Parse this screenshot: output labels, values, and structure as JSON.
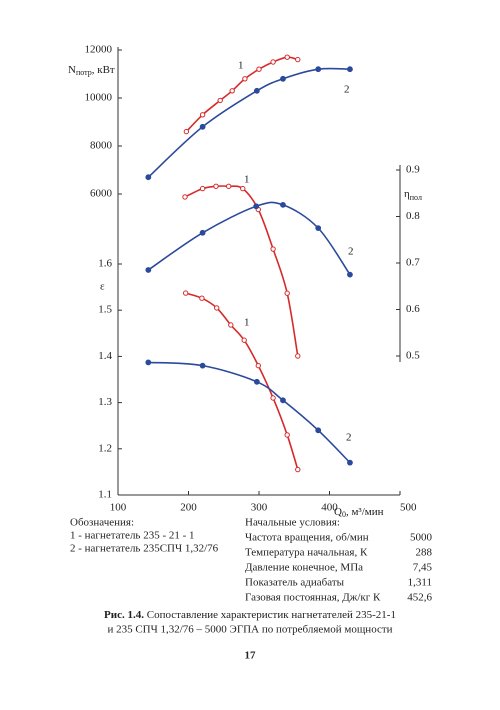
{
  "chart_data": {
    "type": "line",
    "x_label": {
      "main": "Q",
      "sub": "0",
      "unit": ", м³/мин"
    },
    "y_label": {
      "main": "N",
      "sub": "потр",
      "unit": ", кВт"
    },
    "y2_label": {
      "main": "η",
      "sub": "пол"
    },
    "y3_label": "ε",
    "xlim": [
      100,
      500
    ],
    "xticks": [
      100,
      200,
      300,
      400,
      500
    ],
    "ylim": [
      6000,
      12000
    ],
    "yticks": [
      6000,
      8000,
      10000,
      12000
    ],
    "y2lim": [
      0.5,
      0.9
    ],
    "y2ticks": [
      0.5,
      0.6,
      0.7,
      0.8,
      0.9
    ],
    "y3lim": [
      1.1,
      1.6
    ],
    "y3ticks": [
      1.1,
      1.2,
      1.3,
      1.4,
      1.5,
      1.6
    ],
    "grid": false,
    "series": [
      {
        "name": "1",
        "color": "#d62a2a",
        "axis": "y",
        "marker": "open",
        "x": [
          197,
          220,
          245,
          262,
          280,
          300,
          320,
          340,
          355
        ],
        "values": [
          8600,
          9300,
          9900,
          10300,
          10800,
          11200,
          11500,
          11700,
          11600
        ]
      },
      {
        "name": "2",
        "color": "#2b4a9c",
        "axis": "y",
        "marker": "filled",
        "x": [
          143,
          220,
          297,
          334,
          384,
          429
        ],
        "values": [
          6700,
          8800,
          10300,
          10800,
          11200,
          11200
        ]
      },
      {
        "name": "1",
        "color": "#d62a2a",
        "axis": "y2",
        "marker": "open",
        "x": [
          195,
          220,
          239,
          257,
          277,
          299,
          320,
          340,
          355
        ],
        "values": [
          0.842,
          0.86,
          0.865,
          0.865,
          0.86,
          0.815,
          0.73,
          0.635,
          0.5
        ]
      },
      {
        "name": "2",
        "color": "#2b4a9c",
        "axis": "y2",
        "marker": "filled",
        "x": [
          143,
          220,
          296,
          334,
          384,
          429
        ],
        "values": [
          0.685,
          0.765,
          0.822,
          0.825,
          0.775,
          0.675
        ]
      },
      {
        "name": "1",
        "color": "#d62a2a",
        "axis": "y3",
        "marker": "open",
        "x": [
          196,
          219,
          240,
          260,
          279,
          299,
          320,
          340,
          355
        ],
        "values": [
          1.537,
          1.526,
          1.505,
          1.468,
          1.435,
          1.38,
          1.31,
          1.23,
          1.155
        ]
      },
      {
        "name": "2",
        "color": "#2b4a9c",
        "axis": "y3",
        "marker": "filled",
        "x": [
          143,
          220,
          297,
          334,
          384,
          429
        ],
        "values": [
          1.387,
          1.38,
          1.345,
          1.305,
          1.24,
          1.17
        ]
      }
    ]
  },
  "legend": {
    "title": "Обозначения:",
    "items": [
      {
        "text": "1 - нагнетатель 235 - 21 - 1",
        "color": "#d62a2a"
      },
      {
        "text": "2 - нагнетатель 235СПЧ 1,32/76",
        "color": "#2b4a9c"
      }
    ]
  },
  "conditions": {
    "title": "Начальные условия:",
    "rows": [
      [
        "Частота вращения, об/мин",
        "5000"
      ],
      [
        "Температура  начальная, К",
        "288"
      ],
      [
        "Давление  конечное, МПа",
        "7,45"
      ],
      [
        "Показатель  адиабаты",
        "1,311"
      ],
      [
        "Газовая  постоянная, Дж/кг К",
        "452,6"
      ]
    ]
  },
  "caption": {
    "label": "Рис. 1.4.",
    "lines": [
      "Сопоставление характеристик нагнетателей 235-21-1",
      "и 235 СПЧ 1,32/76 – 5000 ЭГПА по потребляемой мощности"
    ]
  },
  "page_number": "17"
}
